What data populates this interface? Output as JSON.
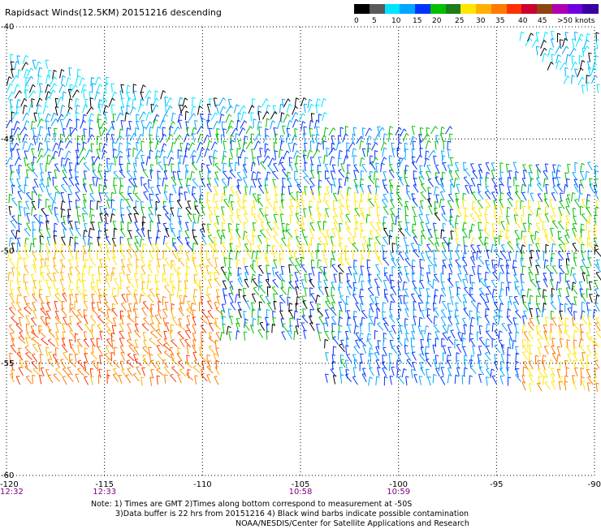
{
  "title": "Rapidsact Winds(12.5KM) 20151216 descending",
  "legend": {
    "colors": [
      "#000000",
      "#5a5a5a",
      "#00e5ff",
      "#00a6ff",
      "#0033ff",
      "#00c000",
      "#1a7c1a",
      "#ffe600",
      "#ffb000",
      "#ff7a00",
      "#ff3000",
      "#cc0033",
      "#8b4513",
      "#b000b0",
      "#7000e0",
      "#3a00a0"
    ],
    "labels": [
      "0",
      "5",
      "10",
      "15",
      "20",
      "25",
      "30",
      "35",
      "40",
      "45",
      ">50 knots"
    ]
  },
  "axes": {
    "lat_labels": [
      "-40",
      "-45",
      "-50",
      "-55",
      "-60"
    ],
    "lon_labels": [
      "-120",
      "-115",
      "-110",
      "-105",
      "-100",
      "-95",
      "-90"
    ],
    "lon_range": [
      -120,
      -90
    ],
    "lat_range": [
      -40,
      -60
    ],
    "grid": "dotted"
  },
  "times": [
    {
      "lon": -120,
      "label": "12:32"
    },
    {
      "lon": -115,
      "label": "12:33"
    },
    {
      "lon": -105,
      "label": "10:58"
    },
    {
      "lon": -100,
      "label": "10:59"
    }
  ],
  "notes": [
    "Note: 1) Times are GMT 2)Times along bottom correspond to measurement at -50S",
    "3)Data buffer is 22 hrs from 20151216 4) Black wind barbs indicate possible contamination",
    "NOAA/NESDIS/Center for Satellite Applications and Research"
  ]
}
